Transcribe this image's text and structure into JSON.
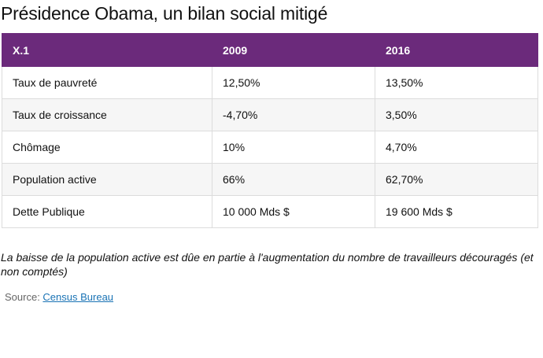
{
  "title": "Présidence Obama, un bilan social mitigé",
  "chart_data": {
    "type": "table",
    "title": "Présidence Obama, un bilan social mitigé",
    "columns": [
      "X.1",
      "2009",
      "2016"
    ],
    "rows": [
      [
        "Taux de pauvreté",
        "12,50%",
        "13,50%"
      ],
      [
        "Taux de croissance",
        "-4,70%",
        "3,50%"
      ],
      [
        "Chômage",
        "10%",
        "4,70%"
      ],
      [
        "Population active",
        "66%",
        "62,70%"
      ],
      [
        "Dette Publique",
        "10 000 Mds $",
        "19 600 Mds $"
      ]
    ]
  },
  "note": "La baisse de la population active est dûe en partie à l'augmentation du nombre de travailleurs découragés (et non comptés)",
  "source": {
    "prefix": "Source: ",
    "link_text": "Census Bureau"
  },
  "colors": {
    "header_background": "#6b2a7b",
    "header_text": "#ffffff",
    "link": "#1a73b5"
  }
}
